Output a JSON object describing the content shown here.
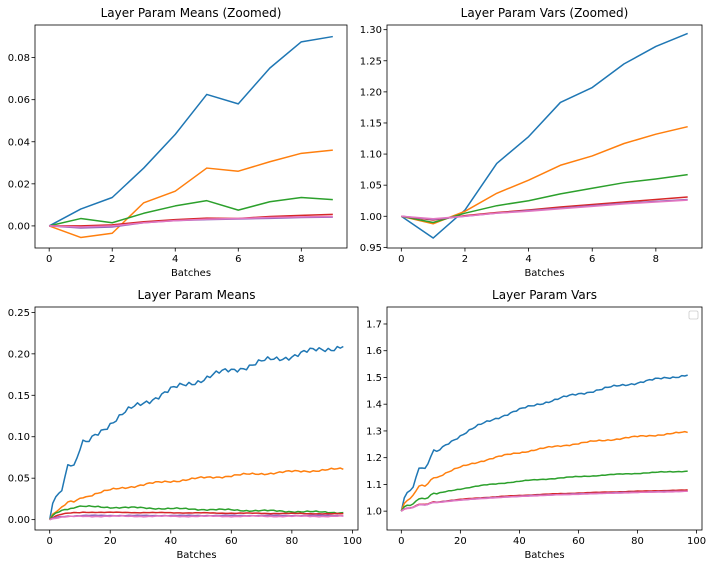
{
  "chart_data": [
    {
      "type": "line",
      "title": "Layer Param Means (Zoomed)",
      "xlabel": "Batches",
      "ylabel": "",
      "xlim": [
        -0.45,
        9.45
      ],
      "ylim": [
        -0.0105,
        0.0955
      ],
      "xticks": [
        0,
        2,
        4,
        6,
        8
      ],
      "xtick_labels": [
        "0",
        "2",
        "4",
        "6",
        "8"
      ],
      "yticks": [
        0.0,
        0.02,
        0.04,
        0.06,
        0.08
      ],
      "ytick_labels": [
        "0.00",
        "0.02",
        "0.04",
        "0.06",
        "0.08"
      ],
      "x": [
        0,
        1,
        2,
        3,
        4,
        5,
        6,
        7,
        8,
        9
      ],
      "series": [
        {
          "color": "#1f77b4",
          "values": [
            0.0,
            0.008,
            0.0135,
            0.0275,
            0.0435,
            0.0625,
            0.058,
            0.075,
            0.0875,
            0.09
          ]
        },
        {
          "color": "#ff7f0e",
          "values": [
            0.0,
            -0.0055,
            -0.0035,
            0.011,
            0.0165,
            0.0275,
            0.026,
            0.0305,
            0.0345,
            0.036
          ]
        },
        {
          "color": "#2ca02c",
          "values": [
            0.0,
            0.0035,
            0.0015,
            0.006,
            0.0095,
            0.012,
            0.0075,
            0.0115,
            0.0135,
            0.0125
          ]
        },
        {
          "color": "#d62728",
          "values": [
            0.0,
            0.0,
            0.0005,
            0.002,
            0.003,
            0.0037,
            0.0035,
            0.0045,
            0.005,
            0.0055
          ]
        },
        {
          "color": "#9467bd",
          "values": [
            0.0,
            -0.001,
            -0.0005,
            0.0015,
            0.0025,
            0.003,
            0.0033,
            0.0036,
            0.004,
            0.0042
          ]
        },
        {
          "color": "#e377c2",
          "values": [
            0.0,
            -0.0005,
            0.0,
            0.0015,
            0.0025,
            0.0032,
            0.0035,
            0.004,
            0.0043,
            0.0045
          ]
        }
      ]
    },
    {
      "type": "line",
      "title": "Layer Param Vars (Zoomed)",
      "xlabel": "Batches",
      "ylabel": "",
      "xlim": [
        -0.45,
        9.45
      ],
      "ylim": [
        0.949,
        1.3075
      ],
      "xticks": [
        0,
        2,
        4,
        6,
        8
      ],
      "xtick_labels": [
        "0",
        "2",
        "4",
        "6",
        "8"
      ],
      "yticks": [
        0.95,
        1.0,
        1.05,
        1.1,
        1.15,
        1.2,
        1.25,
        1.3
      ],
      "ytick_labels": [
        "0.95",
        "1.00",
        "1.05",
        "1.10",
        "1.15",
        "1.20",
        "1.25",
        "1.30"
      ],
      "x": [
        0,
        1,
        2,
        3,
        4,
        5,
        6,
        7,
        8,
        9
      ],
      "series": [
        {
          "color": "#1f77b4",
          "values": [
            1.0,
            0.965,
            1.01,
            1.085,
            1.128,
            1.183,
            1.207,
            1.245,
            1.273,
            1.294
          ]
        },
        {
          "color": "#ff7f0e",
          "values": [
            1.0,
            0.988,
            1.008,
            1.037,
            1.058,
            1.082,
            1.097,
            1.117,
            1.132,
            1.144
          ]
        },
        {
          "color": "#2ca02c",
          "values": [
            1.0,
            0.99,
            1.005,
            1.017,
            1.025,
            1.036,
            1.045,
            1.054,
            1.06,
            1.067
          ]
        },
        {
          "color": "#d62728",
          "values": [
            1.0,
            0.994,
            1.001,
            1.006,
            1.01,
            1.015,
            1.019,
            1.023,
            1.027,
            1.031
          ]
        },
        {
          "color": "#9467bd",
          "values": [
            1.0,
            0.995,
            1.0,
            1.005,
            1.009,
            1.013,
            1.017,
            1.021,
            1.024,
            1.027
          ]
        },
        {
          "color": "#e377c2",
          "values": [
            1.0,
            0.996,
            1.0,
            1.005,
            1.008,
            1.012,
            1.016,
            1.02,
            1.023,
            1.026
          ]
        }
      ]
    },
    {
      "type": "line",
      "title": "Layer Param Means",
      "xlabel": "Batches",
      "ylabel": "",
      "xlim": [
        -4.85,
        101.85
      ],
      "ylim": [
        -0.0125,
        0.2565
      ],
      "xticks": [
        0,
        20,
        40,
        60,
        80,
        100
      ],
      "xtick_labels": [
        "0",
        "20",
        "40",
        "60",
        "80",
        "100"
      ],
      "yticks": [
        0.0,
        0.05,
        0.1,
        0.15,
        0.2,
        0.25
      ],
      "ytick_labels": [
        "0.00",
        "0.05",
        "0.10",
        "0.15",
        "0.20",
        "0.25"
      ],
      "x_count": 98,
      "series": [
        {
          "color": "#1f77b4",
          "kind": "log",
          "a": 0.0,
          "b": 0.21,
          "c": 4.0,
          "d": 0.045,
          "noise": 0.005
        },
        {
          "color": "#ff7f0e",
          "kind": "log",
          "a": 0.0,
          "b": 0.061,
          "c": 3.0,
          "d": 0.007,
          "noise": 0.0018
        },
        {
          "color": "#2ca02c",
          "kind": "hump",
          "a": 0.0,
          "b": 0.016,
          "c": 8.0,
          "d": -0.0075,
          "noise": 0.0012
        },
        {
          "color": "#d62728",
          "kind": "hump",
          "a": 0.0,
          "b": 0.009,
          "c": 10.0,
          "d": -0.002,
          "noise": 0.0004
        },
        {
          "color": "#9467bd",
          "kind": "hump",
          "a": 0.0,
          "b": 0.005,
          "c": 10.0,
          "d": 0.0,
          "noise": 0.0005
        },
        {
          "color": "#e377c2",
          "kind": "hump",
          "a": 0.0,
          "b": 0.004,
          "c": 10.0,
          "d": 0.0,
          "noise": 0.0007
        }
      ]
    },
    {
      "type": "line",
      "title": "Layer Param Vars",
      "xlabel": "Batches",
      "ylabel": "",
      "legend": "top-right",
      "xlim": [
        -4.85,
        101.85
      ],
      "ylim": [
        0.9295,
        1.7635
      ],
      "xticks": [
        0,
        20,
        40,
        60,
        80,
        100
      ],
      "xtick_labels": [
        "0",
        "20",
        "40",
        "60",
        "80",
        "100"
      ],
      "yticks": [
        1.0,
        1.1,
        1.2,
        1.3,
        1.4,
        1.5,
        1.6,
        1.7
      ],
      "ytick_labels": [
        "1.0",
        "1.1",
        "1.2",
        "1.3",
        "1.4",
        "1.5",
        "1.6",
        "1.7"
      ],
      "x_count": 98,
      "series": [
        {
          "color": "#1f77b4",
          "kind": "log",
          "a": 1.0,
          "b": 0.51,
          "c": 4.0,
          "d": 0.11,
          "noise": 0.006
        },
        {
          "color": "#ff7f0e",
          "kind": "log",
          "a": 1.0,
          "b": 0.295,
          "c": 4.0,
          "d": 0.05,
          "noise": 0.004
        },
        {
          "color": "#2ca02c",
          "kind": "log",
          "a": 1.0,
          "b": 0.15,
          "c": 4.0,
          "d": 0.035,
          "noise": 0.002
        },
        {
          "color": "#d62728",
          "kind": "log",
          "a": 1.0,
          "b": 0.079,
          "c": 4.0,
          "d": 0.018,
          "noise": 0.0008
        },
        {
          "color": "#9467bd",
          "kind": "log",
          "a": 1.0,
          "b": 0.075,
          "c": 4.0,
          "d": 0.017,
          "noise": 0.0008
        },
        {
          "color": "#e377c2",
          "kind": "log",
          "a": 1.0,
          "b": 0.074,
          "c": 4.0,
          "d": 0.017,
          "noise": 0.0008
        }
      ]
    }
  ]
}
